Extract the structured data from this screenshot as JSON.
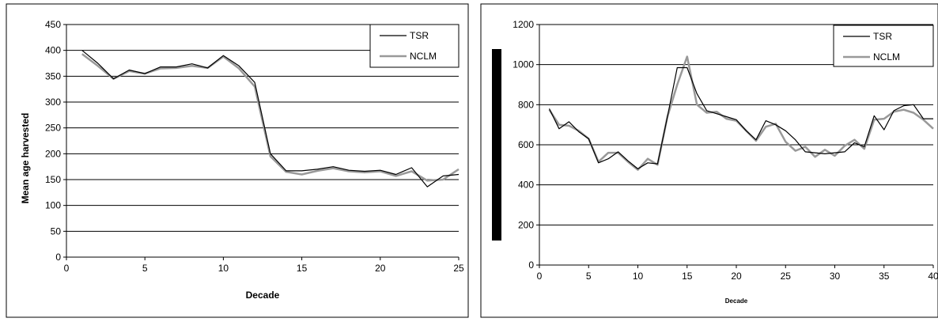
{
  "chart_data": [
    {
      "type": "line",
      "title": "",
      "xlabel": "Decade",
      "ylabel": "Mean age harvested",
      "xlim": [
        0,
        25
      ],
      "ylim": [
        0,
        450
      ],
      "xticks": [
        "0",
        "5",
        "10",
        "15",
        "20",
        "25"
      ],
      "yticks": [
        "0",
        "50",
        "100",
        "150",
        "200",
        "250",
        "300",
        "350",
        "400",
        "450"
      ],
      "grid": "horizontal",
      "legend": "top-right",
      "x": [
        1,
        2,
        3,
        4,
        5,
        6,
        7,
        8,
        9,
        10,
        11,
        12,
        13,
        14,
        15,
        16,
        17,
        18,
        19,
        20,
        21,
        22,
        23,
        24,
        25
      ],
      "series": [
        {
          "name": "TSR",
          "color": "#000000",
          "values": [
            400,
            375,
            345,
            362,
            355,
            368,
            368,
            374,
            366,
            390,
            370,
            338,
            200,
            167,
            167,
            170,
            175,
            168,
            166,
            168,
            160,
            173,
            136,
            157,
            160
          ]
        },
        {
          "name": "NCLM",
          "color": "#999999",
          "values": [
            393,
            370,
            345,
            360,
            355,
            365,
            366,
            370,
            366,
            388,
            365,
            330,
            195,
            165,
            160,
            167,
            172,
            166,
            164,
            166,
            157,
            166,
            148,
            150,
            170
          ]
        }
      ]
    },
    {
      "type": "line",
      "title": "",
      "xlabel": "Decade",
      "ylabel": "",
      "xlim": [
        0,
        40
      ],
      "ylim": [
        0,
        1200
      ],
      "xticks": [
        "0",
        "5",
        "10",
        "15",
        "20",
        "25",
        "30",
        "35",
        "40"
      ],
      "yticks": [
        "0",
        "200",
        "400",
        "600",
        "800",
        "1000",
        "1200"
      ],
      "grid": "horizontal",
      "legend": "top-right",
      "x": [
        1,
        2,
        3,
        4,
        5,
        6,
        7,
        8,
        9,
        10,
        11,
        12,
        13,
        14,
        15,
        16,
        17,
        18,
        19,
        20,
        21,
        22,
        23,
        24,
        25,
        26,
        27,
        28,
        29,
        30,
        31,
        32,
        33,
        34,
        35,
        36,
        37,
        38,
        39,
        40
      ],
      "series": [
        {
          "name": "TSR",
          "color": "#000000",
          "values": [
            780,
            680,
            715,
            665,
            630,
            510,
            530,
            565,
            520,
            480,
            510,
            505,
            740,
            985,
            985,
            855,
            770,
            755,
            740,
            725,
            670,
            625,
            720,
            700,
            670,
            625,
            565,
            560,
            555,
            560,
            565,
            610,
            590,
            745,
            675,
            770,
            795,
            800,
            730,
            730
          ]
        },
        {
          "name": "NCLM",
          "color": "#999999",
          "values": [
            775,
            700,
            695,
            670,
            630,
            515,
            560,
            560,
            515,
            475,
            530,
            500,
            740,
            900,
            1040,
            800,
            760,
            765,
            730,
            720,
            670,
            620,
            690,
            705,
            615,
            570,
            590,
            540,
            575,
            545,
            595,
            625,
            580,
            725,
            730,
            765,
            775,
            760,
            725,
            680
          ]
        }
      ]
    }
  ]
}
